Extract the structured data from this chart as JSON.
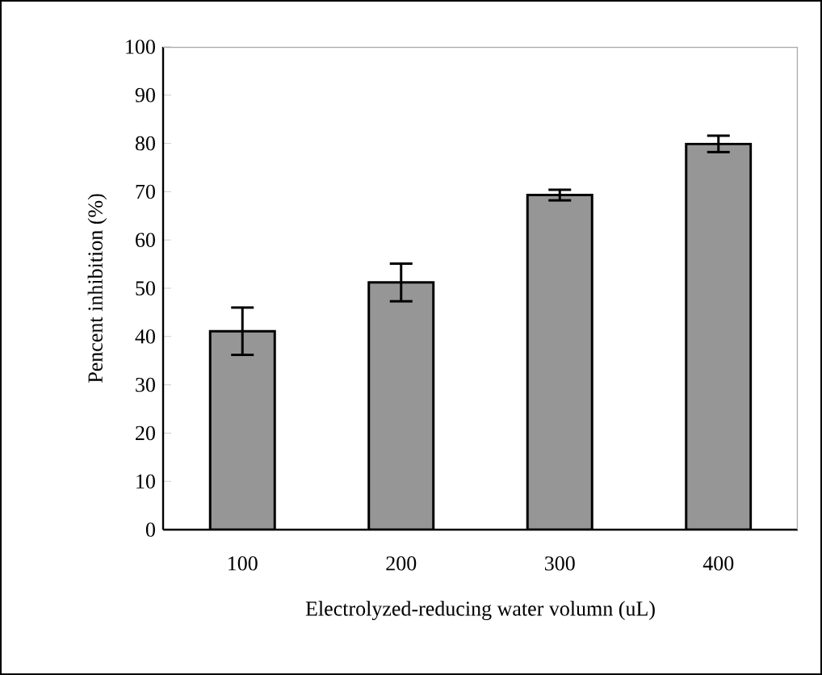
{
  "chart_data": {
    "type": "bar",
    "xlabel": "Electrolyzed-reducing water volumn (uL)",
    "ylabel": "Pencent inhibition (%)",
    "categories": [
      "100",
      "200",
      "300",
      "400"
    ],
    "values": [
      41.1,
      51.2,
      69.3,
      79.9
    ],
    "errors": [
      4.9,
      3.9,
      1.1,
      1.7
    ],
    "color": "#969696",
    "ylim": [
      0,
      100
    ],
    "yticks": [
      0,
      10,
      20,
      30,
      40,
      50,
      60,
      70,
      80,
      90,
      100
    ],
    "grid": false
  }
}
